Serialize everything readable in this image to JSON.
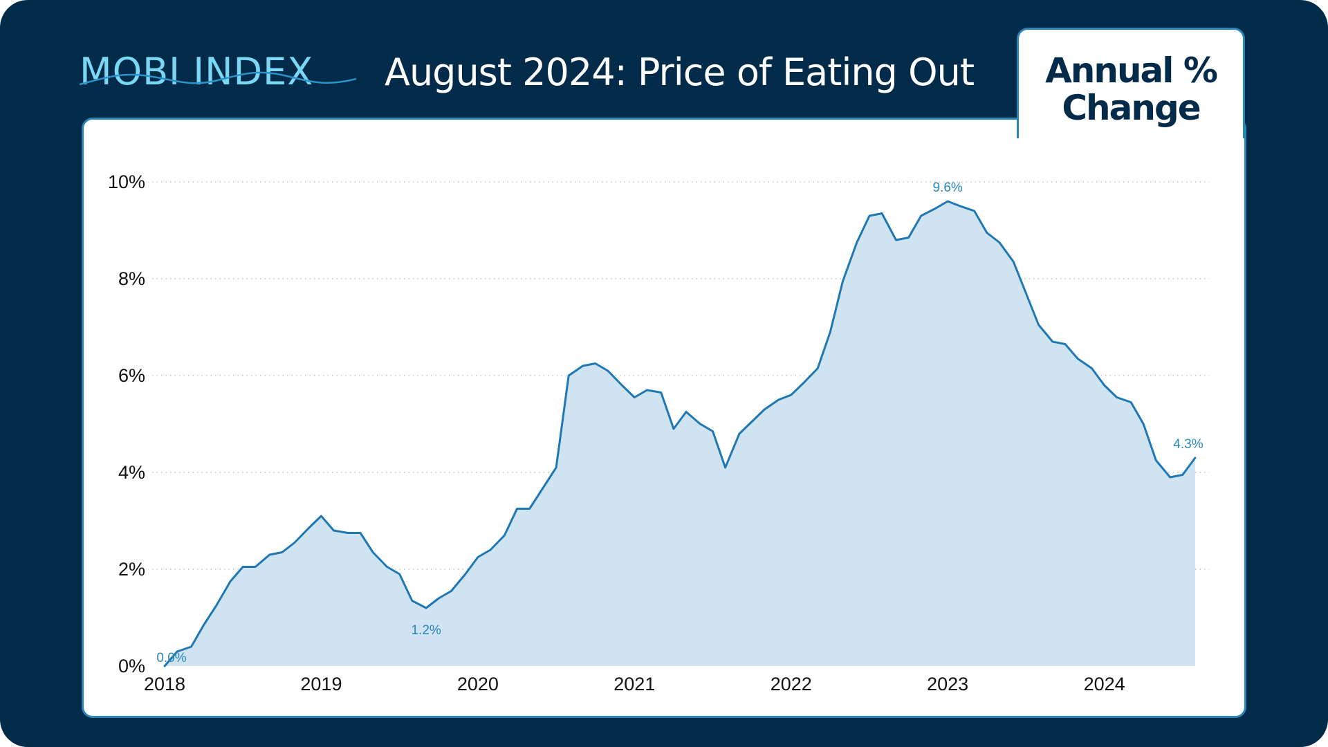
{
  "brand": {
    "logo": "MOBI INDEX"
  },
  "header": {
    "title": "August 2024: Price of Eating Out"
  },
  "tab": {
    "label": "Annual % Change"
  },
  "colors": {
    "background": "#022b4a",
    "logo": "#7ad8f5",
    "line": "#1f78b4",
    "area": "#cfe3f0",
    "annotation": "#2a86c0",
    "border": "#2a85b8"
  },
  "chart_data": {
    "type": "area",
    "title": "August 2024: Price of Eating Out",
    "subtitle": "Annual % Change",
    "xlabel": "",
    "ylabel": "",
    "xlim": [
      2018.0,
      2024.62
    ],
    "ylim": [
      0,
      10
    ],
    "grid": "horizontal dotted",
    "y_ticks": [
      "0%",
      "2%",
      "4%",
      "6%",
      "8%",
      "10%"
    ],
    "x_ticks": [
      "2018",
      "2019",
      "2020",
      "2021",
      "2022",
      "2023",
      "2024"
    ],
    "annotations": [
      {
        "x": 2018.0,
        "y": 0.0,
        "text": "0.0%"
      },
      {
        "x": 2019.67,
        "y": 1.2,
        "text": "1.2%"
      },
      {
        "x": 2023.0,
        "y": 9.6,
        "text": "9.6%"
      },
      {
        "x": 2024.58,
        "y": 4.3,
        "text": "4.3%"
      }
    ],
    "series": [
      {
        "x": [
          2018.0,
          2018.08,
          2018.17,
          2018.25,
          2018.33,
          2018.42,
          2018.5,
          2018.58,
          2018.67,
          2018.75,
          2018.83,
          2018.92,
          2019.0,
          2019.08,
          2019.17,
          2019.25,
          2019.33,
          2019.42,
          2019.5,
          2019.58,
          2019.67,
          2019.75,
          2019.83,
          2019.92,
          2020.0,
          2020.08,
          2020.17,
          2020.25,
          2020.33,
          2020.42,
          2020.5,
          2020.58,
          2020.67,
          2020.75,
          2020.83,
          2020.92,
          2021.0,
          2021.08,
          2021.17,
          2021.25,
          2021.33,
          2021.42,
          2021.5,
          2021.58,
          2021.67,
          2021.75,
          2021.83,
          2021.92,
          2022.0,
          2022.08,
          2022.17,
          2022.25,
          2022.33,
          2022.42,
          2022.5,
          2022.58,
          2022.67,
          2022.75,
          2022.83,
          2022.92,
          2023.0,
          2023.08,
          2023.17,
          2023.25,
          2023.33,
          2023.42,
          2023.5,
          2023.58,
          2023.67,
          2023.75,
          2023.83,
          2023.92,
          2024.0,
          2024.08,
          2024.17,
          2024.25,
          2024.33,
          2024.42,
          2024.5,
          2024.58
        ],
        "values": [
          0.0,
          0.3,
          0.4,
          0.85,
          1.25,
          1.75,
          2.05,
          2.05,
          2.3,
          2.35,
          2.55,
          2.85,
          3.1,
          2.8,
          2.75,
          2.75,
          2.35,
          2.05,
          1.9,
          1.35,
          1.2,
          1.4,
          1.55,
          1.9,
          2.25,
          2.4,
          2.7,
          3.25,
          3.25,
          3.7,
          4.1,
          6.0,
          6.2,
          6.25,
          6.1,
          5.8,
          5.55,
          5.7,
          5.65,
          4.9,
          5.25,
          5.0,
          4.85,
          4.1,
          4.8,
          5.05,
          5.3,
          5.5,
          5.6,
          5.85,
          6.15,
          6.9,
          7.95,
          8.75,
          9.3,
          9.35,
          8.8,
          8.85,
          9.3,
          9.45,
          9.6,
          9.5,
          9.4,
          8.95,
          8.75,
          8.35,
          7.7,
          7.05,
          6.7,
          6.65,
          6.35,
          6.15,
          5.8,
          5.55,
          5.45,
          5.0,
          4.25,
          3.9,
          3.95,
          4.3
        ]
      }
    ]
  }
}
